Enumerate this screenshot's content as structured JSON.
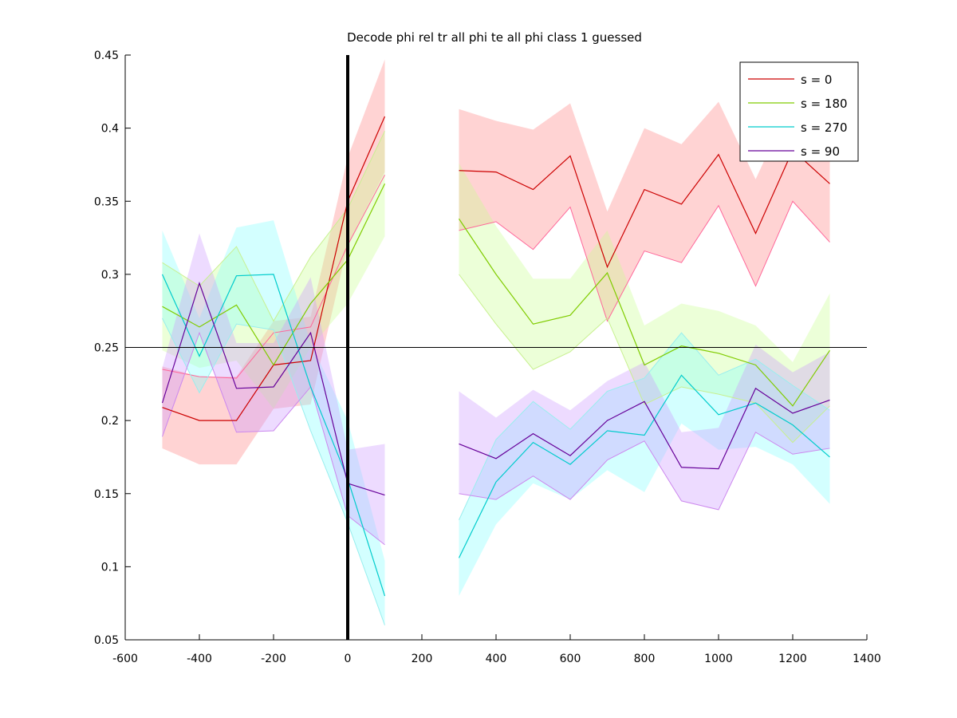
{
  "chart_data": {
    "type": "line",
    "title": "Decode phi rel tr all phi te all phi class 1 guessed",
    "xlabel": "",
    "ylabel": "",
    "xlim": [
      -600,
      1400
    ],
    "ylim": [
      0.05,
      0.45
    ],
    "xticks": [
      -600,
      -400,
      -200,
      0,
      200,
      400,
      600,
      800,
      1000,
      1200,
      1400
    ],
    "yticks": [
      0.05,
      0.1,
      0.15,
      0.2,
      0.25,
      0.3,
      0.35,
      0.4,
      0.45
    ],
    "xtick_labels": [
      "-600",
      "-400",
      "-200",
      "0",
      "200",
      "400",
      "600",
      "800",
      "1000",
      "1200",
      "1400"
    ],
    "ytick_labels": [
      "0.05",
      "0.1",
      "0.15",
      "0.2",
      "0.25",
      "0.3",
      "0.35",
      "0.4",
      "0.45"
    ],
    "grid": false,
    "legend_position": "top-right",
    "reference_lines": {
      "vertical_x": 0,
      "horizontal_y": 0.25
    },
    "series": [
      {
        "name": "s = 0",
        "color": "#cc0000",
        "band_color": "#ff8080",
        "segments": [
          {
            "x": [
              -500,
              -400,
              -300,
              -200,
              -100,
              0,
              100
            ],
            "y": [
              0.209,
              0.2,
              0.2,
              0.238,
              0.241,
              0.35,
              0.408
            ],
            "lower": [
              0.181,
              0.17,
              0.17,
              0.208,
              0.211,
              0.32,
              0.37
            ],
            "upper": [
              0.237,
              0.23,
              0.23,
              0.268,
              0.271,
              0.38,
              0.447
            ]
          },
          {
            "x": [
              300,
              400,
              500,
              600,
              700,
              800,
              900,
              1000,
              1100,
              1200,
              1300
            ],
            "y": [
              0.371,
              0.37,
              0.358,
              0.381,
              0.305,
              0.358,
              0.348,
              0.382,
              0.328,
              0.385,
              0.362
            ],
            "lower": [
              0.33,
              0.336,
              0.317,
              0.346,
              0.268,
              0.316,
              0.308,
              0.347,
              0.292,
              0.35,
              0.322
            ],
            "upper": [
              0.413,
              0.405,
              0.399,
              0.417,
              0.343,
              0.4,
              0.389,
              0.418,
              0.365,
              0.42,
              0.402
            ]
          }
        ]
      },
      {
        "name": "s = 180",
        "color": "#80cc00",
        "band_color": "#c8ff90",
        "segments": [
          {
            "x": [
              -500,
              -400,
              -300,
              -200,
              -100,
              0,
              100
            ],
            "y": [
              0.278,
              0.264,
              0.279,
              0.238,
              0.28,
              0.31,
              0.362
            ],
            "lower": [
              0.248,
              0.236,
              0.241,
              0.208,
              0.25,
              0.28,
              0.326
            ],
            "upper": [
              0.308,
              0.292,
              0.319,
              0.268,
              0.312,
              0.345,
              0.398
            ]
          },
          {
            "x": [
              300,
              400,
              500,
              600,
              700,
              800,
              900,
              1000,
              1100,
              1200,
              1300
            ],
            "y": [
              0.338,
              0.3,
              0.266,
              0.272,
              0.301,
              0.238,
              0.251,
              0.246,
              0.238,
              0.21,
              0.248
            ],
            "lower": [
              0.3,
              0.266,
              0.235,
              0.247,
              0.27,
              0.211,
              0.223,
              0.218,
              0.212,
              0.185,
              0.21
            ],
            "upper": [
              0.376,
              0.333,
              0.297,
              0.297,
              0.33,
              0.265,
              0.28,
              0.275,
              0.265,
              0.24,
              0.287
            ]
          }
        ]
      },
      {
        "name": "s = 270",
        "color": "#00cccc",
        "band_color": "#80ffff",
        "segments": [
          {
            "x": [
              -500,
              -400,
              -300,
              -200,
              -100,
              0,
              100
            ],
            "y": [
              0.3,
              0.244,
              0.299,
              0.3,
              0.223,
              0.16,
              0.08
            ],
            "lower": [
              0.27,
              0.219,
              0.266,
              0.262,
              0.193,
              0.13,
              0.06
            ],
            "upper": [
              0.33,
              0.27,
              0.332,
              0.337,
              0.253,
              0.2,
              0.104
            ]
          },
          {
            "x": [
              300,
              400,
              500,
              600,
              700,
              800,
              900,
              1000,
              1100,
              1200,
              1300
            ],
            "y": [
              0.106,
              0.158,
              0.185,
              0.17,
              0.193,
              0.19,
              0.231,
              0.204,
              0.212,
              0.197,
              0.175
            ],
            "lower": [
              0.08,
              0.129,
              0.157,
              0.146,
              0.166,
              0.151,
              0.198,
              0.18,
              0.182,
              0.17,
              0.143
            ],
            "upper": [
              0.132,
              0.187,
              0.213,
              0.194,
              0.22,
              0.229,
              0.26,
              0.231,
              0.242,
              0.224,
              0.207
            ]
          }
        ]
      },
      {
        "name": "s = 90",
        "color": "#660099",
        "band_color": "#cc99ff",
        "segments": [
          {
            "x": [
              -500,
              -400,
              -300,
              -200,
              -100,
              0,
              100
            ],
            "y": [
              0.212,
              0.294,
              0.222,
              0.223,
              0.26,
              0.157,
              0.149
            ],
            "lower": [
              0.189,
              0.26,
              0.192,
              0.193,
              0.223,
              0.135,
              0.115
            ],
            "upper": [
              0.236,
              0.328,
              0.253,
              0.253,
              0.298,
              0.18,
              0.184
            ]
          },
          {
            "x": [
              300,
              400,
              500,
              600,
              700,
              800,
              900,
              1000,
              1100,
              1200,
              1300
            ],
            "y": [
              0.184,
              0.174,
              0.191,
              0.176,
              0.2,
              0.213,
              0.168,
              0.167,
              0.222,
              0.205,
              0.214
            ],
            "lower": [
              0.15,
              0.146,
              0.162,
              0.146,
              0.173,
              0.186,
              0.145,
              0.139,
              0.192,
              0.177,
              0.181
            ],
            "upper": [
              0.22,
              0.202,
              0.221,
              0.207,
              0.227,
              0.24,
              0.192,
              0.195,
              0.252,
              0.233,
              0.247
            ]
          }
        ]
      }
    ],
    "thin_traces": [
      {
        "color": "#ff6699",
        "x": [
          -500,
          -400,
          -300,
          -200,
          -100,
          0,
          100
        ],
        "y": [
          0.235,
          0.23,
          0.229,
          0.26,
          0.264,
          0.32,
          0.368
        ]
      },
      {
        "color": "#ff6699",
        "x": [
          300,
          400,
          500,
          600,
          700,
          800,
          900,
          1000,
          1100,
          1200,
          1300
        ],
        "y": [
          0.33,
          0.336,
          0.317,
          0.346,
          0.268,
          0.316,
          0.308,
          0.347,
          0.292,
          0.35,
          0.322
        ]
      },
      {
        "color": "#c8f090",
        "x": [
          -500,
          -400,
          -300,
          -200,
          -100,
          0,
          100
        ],
        "y": [
          0.308,
          0.292,
          0.319,
          0.268,
          0.312,
          0.345,
          0.398
        ]
      },
      {
        "color": "#c8f090",
        "x": [
          300,
          400,
          500,
          600,
          700,
          800,
          900,
          1000,
          1100,
          1200,
          1300
        ],
        "y": [
          0.3,
          0.266,
          0.235,
          0.247,
          0.27,
          0.211,
          0.223,
          0.218,
          0.212,
          0.185,
          0.21
        ]
      },
      {
        "color": "#99eeee",
        "x": [
          -500,
          -400,
          -300,
          -200,
          -100,
          0,
          100
        ],
        "y": [
          0.27,
          0.219,
          0.266,
          0.262,
          0.193,
          0.13,
          0.06
        ]
      },
      {
        "color": "#99eeee",
        "x": [
          300,
          400,
          500,
          600,
          700,
          800,
          900,
          1000,
          1100,
          1200,
          1300
        ],
        "y": [
          0.132,
          0.187,
          0.213,
          0.194,
          0.22,
          0.229,
          0.26,
          0.231,
          0.242,
          0.224,
          0.207
        ]
      },
      {
        "color": "#cc88ee",
        "x": [
          -500,
          -400,
          -300,
          -200,
          -100,
          0,
          100
        ],
        "y": [
          0.189,
          0.26,
          0.192,
          0.193,
          0.223,
          0.135,
          0.115
        ]
      },
      {
        "color": "#cc88ee",
        "x": [
          300,
          400,
          500,
          600,
          700,
          800,
          900,
          1000,
          1100,
          1200,
          1300
        ],
        "y": [
          0.15,
          0.146,
          0.162,
          0.146,
          0.173,
          0.186,
          0.145,
          0.139,
          0.192,
          0.177,
          0.181
        ]
      }
    ],
    "legend": [
      {
        "label": "s = 0",
        "color": "#cc0000"
      },
      {
        "label": "s = 180",
        "color": "#80cc00"
      },
      {
        "label": "s = 270",
        "color": "#00cccc"
      },
      {
        "label": "s = 90",
        "color": "#660099"
      }
    ]
  }
}
